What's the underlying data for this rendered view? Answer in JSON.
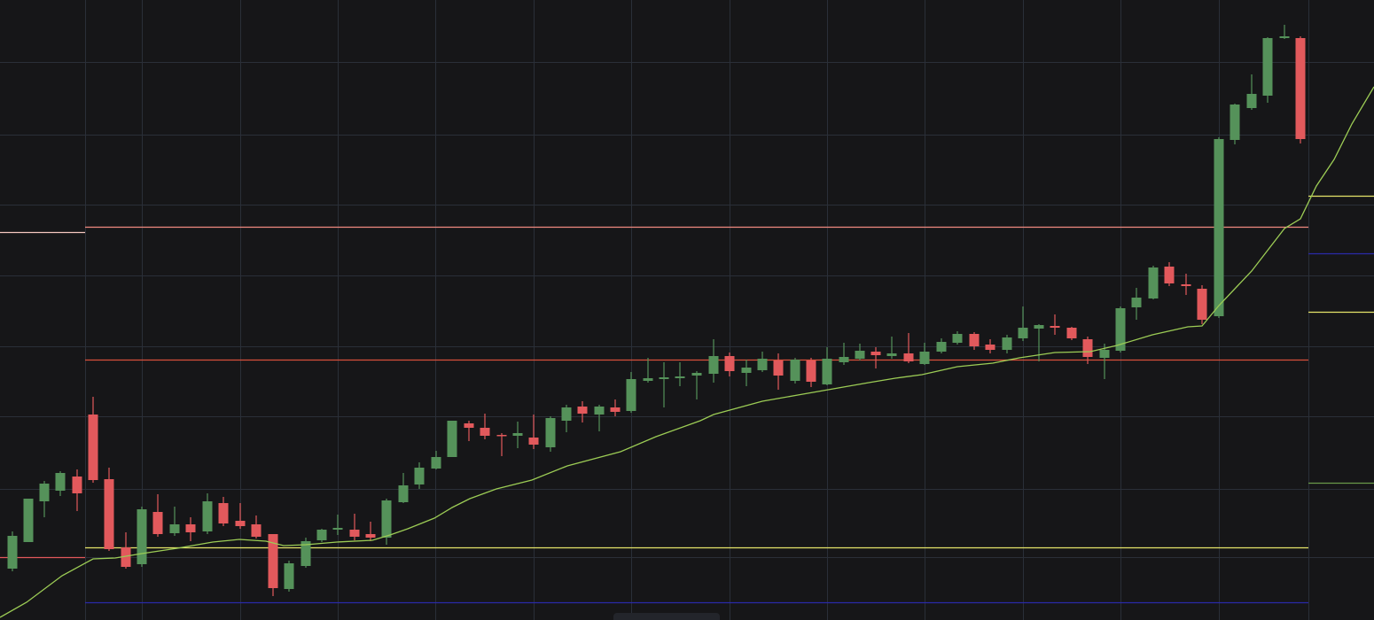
{
  "chart_data": {
    "type": "candlestick",
    "up_color": "#55925a",
    "down_color": "#e2595c",
    "grid": true,
    "grid_color": "#2a2f38",
    "xlim": [
      0,
      1550
    ],
    "ylim": [
      0,
      700
    ],
    "xticks": [
      96,
      160,
      271,
      381,
      491,
      602,
      712,
      823,
      933,
      1043,
      1154,
      1264,
      1375
    ],
    "yticks": [
      71,
      148,
      230,
      309,
      389,
      469,
      548,
      630
    ],
    "x": [
      14,
      32,
      50,
      68,
      87,
      105,
      123,
      142,
      160,
      178,
      197,
      215,
      234,
      252,
      271,
      289,
      308,
      326,
      345,
      363,
      381,
      400,
      418,
      436,
      455,
      473,
      492,
      510,
      529,
      547,
      566,
      584,
      602,
      621,
      639,
      657,
      676,
      694,
      712,
      731,
      749,
      767,
      786,
      805,
      823,
      842,
      860,
      878,
      897,
      915,
      933,
      952,
      970,
      988,
      1006,
      1025,
      1043,
      1062,
      1080,
      1099,
      1117,
      1136,
      1154,
      1172,
      1190,
      1209,
      1227,
      1246,
      1264,
      1282,
      1301,
      1319,
      1338,
      1356,
      1375,
      1393,
      1412,
      1430,
      1449,
      1467
    ],
    "open": [
      58,
      88,
      134,
      146,
      162,
      232,
      159,
      82,
      63,
      122,
      98,
      108,
      100,
      132,
      112,
      108,
      97,
      35,
      61,
      90,
      102,
      102,
      97,
      93,
      133,
      153,
      171,
      184,
      222,
      217,
      209,
      208,
      206,
      195,
      225,
      241,
      232,
      240,
      236,
      270,
      272,
      273,
      276,
      278,
      298,
      279,
      282,
      293,
      270,
      293,
      266,
      291,
      295,
      303,
      298,
      301,
      289,
      303,
      313,
      323,
      311,
      305,
      318,
      329,
      332,
      330,
      317,
      296,
      304,
      353,
      363,
      399,
      379,
      374,
      343,
      542,
      578,
      592,
      657,
      657
    ],
    "high": [
      100,
      137,
      157,
      168,
      170,
      252,
      172,
      99,
      128,
      142,
      128,
      116,
      143,
      139,
      132,
      118,
      97,
      67,
      93,
      103,
      119,
      120,
      111,
      137,
      166,
      178,
      191,
      225,
      225,
      233,
      211,
      224,
      232,
      230,
      243,
      247,
      243,
      249,
      280,
      296,
      291,
      291,
      281,
      317,
      302,
      294,
      303,
      301,
      296,
      296,
      308,
      313,
      312,
      308,
      320,
      324,
      313,
      318,
      326,
      325,
      317,
      322,
      354,
      334,
      345,
      331,
      320,
      312,
      354,
      375,
      400,
      404,
      391,
      378,
      545,
      583,
      616,
      658,
      672,
      659
    ],
    "low": [
      55,
      88,
      116,
      140,
      123,
      155,
      78,
      58,
      60,
      94,
      95,
      89,
      97,
      106,
      103,
      92,
      27,
      32,
      59,
      88,
      96,
      90,
      89,
      85,
      132,
      148,
      170,
      184,
      202,
      204,
      185,
      194,
      193,
      190,
      212,
      223,
      213,
      230,
      234,
      268,
      240,
      264,
      249,
      268,
      275,
      264,
      280,
      260,
      267,
      263,
      265,
      288,
      293,
      284,
      295,
      290,
      288,
      301,
      311,
      305,
      301,
      301,
      315,
      292,
      322,
      316,
      289,
      272,
      302,
      339,
      362,
      377,
      367,
      334,
      341,
      537,
      576,
      584,
      656,
      538
    ],
    "close": [
      95,
      137,
      154,
      166,
      143,
      158,
      80,
      60,
      125,
      97,
      108,
      99,
      134,
      109,
      106,
      94,
      36,
      64,
      89,
      102,
      104,
      94,
      93,
      135,
      152,
      172,
      184,
      225,
      217,
      208,
      208,
      211,
      198,
      228,
      240,
      233,
      241,
      235,
      272,
      273,
      274,
      275,
      279,
      298,
      281,
      285,
      295,
      276,
      294,
      269,
      295,
      297,
      304,
      299,
      301,
      292,
      303,
      314,
      323,
      309,
      305,
      319,
      330,
      333,
      330,
      318,
      297,
      305,
      352,
      364,
      398,
      380,
      377,
      339,
      543,
      582,
      594,
      657,
      659,
      543
    ],
    "ma": {
      "color": "#9ccc55",
      "x": [
        0,
        30,
        70,
        105,
        130,
        160,
        200,
        240,
        270,
        300,
        320,
        345,
        380,
        420,
        440,
        460,
        490,
        510,
        530,
        560,
        600,
        640,
        700,
        740,
        790,
        805,
        860,
        900,
        940,
        980,
        1010,
        1040,
        1080,
        1120,
        1150,
        1190,
        1230,
        1260,
        1300,
        1340,
        1356,
        1375,
        1412,
        1449,
        1467,
        1485,
        1505,
        1525,
        1550
      ],
      "values": [
        3,
        20,
        50,
        69,
        70,
        75,
        81,
        88,
        91,
        89,
        84,
        85,
        88,
        90,
        96,
        103,
        115,
        127,
        137,
        148,
        158,
        174,
        190,
        207,
        225,
        232,
        247,
        254,
        261,
        268,
        273,
        277,
        286,
        290,
        296,
        302,
        303,
        310,
        322,
        331,
        332,
        355,
        394,
        442,
        453,
        490,
        520,
        560,
        602
      ]
    },
    "levels": [
      {
        "value": 444,
        "color": "#f08a80",
        "segment": "main"
      },
      {
        "value": 294,
        "color": "#d9503a",
        "segment": "main"
      },
      {
        "value": 82,
        "color": "#e6e46a",
        "segment": "main"
      },
      {
        "value": 20,
        "color": "#2a2aa8",
        "segment": "main"
      },
      {
        "value": 438,
        "color": "#f5c7bf",
        "segment": "left"
      },
      {
        "value": 71,
        "color": "#e2595c",
        "segment": "left"
      },
      {
        "value": 479,
        "color": "#e6e46a",
        "segment": "right"
      },
      {
        "value": 414,
        "color": "#2a2aa8",
        "segment": "right"
      },
      {
        "value": 348,
        "color": "#e6e46a",
        "segment": "right"
      },
      {
        "value": 155,
        "color": "#6a9a4a",
        "segment": "right"
      }
    ]
  }
}
